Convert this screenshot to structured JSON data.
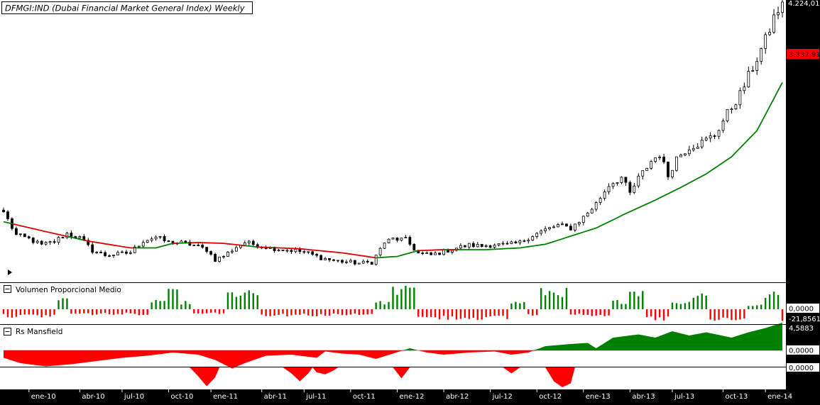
{
  "title": "DFMGI:IND (Dubai Financial Market General Index) Weekly",
  "colors": {
    "background": "#ffffff",
    "axis_panel": "#000000",
    "candle": "#000000",
    "ma_below": "#e00000",
    "ma_above": "#008000",
    "bar_up": "#008000",
    "bar_down": "#ff0000",
    "price_tag": "#ff0000"
  },
  "chart_data": [
    {
      "type": "candlestick",
      "name": "price",
      "title": "DFMGI:IND (Dubai Financial Market General Index) Weekly",
      "period": "Weekly",
      "last_price_label": "4.224,01",
      "ma_value_label": "3.332,91",
      "ylim": [
        1260,
        4224
      ],
      "price_keypoints": [
        {
          "w": 0,
          "p": 1900
        },
        {
          "w": 3,
          "p": 1640
        },
        {
          "w": 6,
          "p": 1600
        },
        {
          "w": 9,
          "p": 1530
        },
        {
          "w": 12,
          "p": 1570
        },
        {
          "w": 15,
          "p": 1660
        },
        {
          "w": 18,
          "p": 1610
        },
        {
          "w": 21,
          "p": 1470
        },
        {
          "w": 24,
          "p": 1420
        },
        {
          "w": 27,
          "p": 1430
        },
        {
          "w": 30,
          "p": 1450
        },
        {
          "w": 33,
          "p": 1580
        },
        {
          "w": 36,
          "p": 1620
        },
        {
          "w": 39,
          "p": 1560
        },
        {
          "w": 42,
          "p": 1555
        },
        {
          "w": 45,
          "p": 1530
        },
        {
          "w": 48,
          "p": 1480
        },
        {
          "w": 50,
          "p": 1370
        },
        {
          "w": 52,
          "p": 1410
        },
        {
          "w": 55,
          "p": 1510
        },
        {
          "w": 57,
          "p": 1560
        },
        {
          "w": 60,
          "p": 1530
        },
        {
          "w": 63,
          "p": 1500
        },
        {
          "w": 66,
          "p": 1480
        },
        {
          "w": 69,
          "p": 1470
        },
        {
          "w": 72,
          "p": 1440
        },
        {
          "w": 75,
          "p": 1390
        },
        {
          "w": 78,
          "p": 1360
        },
        {
          "w": 81,
          "p": 1345
        },
        {
          "w": 84,
          "p": 1330
        },
        {
          "w": 87,
          "p": 1340
        },
        {
          "w": 90,
          "p": 1560
        },
        {
          "w": 92,
          "p": 1600
        },
        {
          "w": 95,
          "p": 1590
        },
        {
          "w": 98,
          "p": 1440
        },
        {
          "w": 101,
          "p": 1420
        },
        {
          "w": 104,
          "p": 1460
        },
        {
          "w": 107,
          "p": 1500
        },
        {
          "w": 110,
          "p": 1530
        },
        {
          "w": 113,
          "p": 1520
        },
        {
          "w": 116,
          "p": 1540
        },
        {
          "w": 119,
          "p": 1530
        },
        {
          "w": 122,
          "p": 1560
        },
        {
          "w": 125,
          "p": 1640
        },
        {
          "w": 128,
          "p": 1700
        },
        {
          "w": 131,
          "p": 1750
        },
        {
          "w": 134,
          "p": 1720
        },
        {
          "w": 137,
          "p": 1840
        },
        {
          "w": 140,
          "p": 1990
        },
        {
          "w": 143,
          "p": 2200
        },
        {
          "w": 146,
          "p": 2280
        },
        {
          "w": 148,
          "p": 2100
        },
        {
          "w": 150,
          "p": 2270
        },
        {
          "w": 153,
          "p": 2460
        },
        {
          "w": 155,
          "p": 2540
        },
        {
          "w": 157,
          "p": 2300
        },
        {
          "w": 159,
          "p": 2500
        },
        {
          "w": 162,
          "p": 2620
        },
        {
          "w": 165,
          "p": 2670
        },
        {
          "w": 168,
          "p": 2750
        },
        {
          "w": 171,
          "p": 2990
        },
        {
          "w": 174,
          "p": 3200
        },
        {
          "w": 177,
          "p": 3500
        },
        {
          "w": 180,
          "p": 3800
        },
        {
          "w": 182,
          "p": 4050
        },
        {
          "w": 184,
          "p": 4224
        }
      ],
      "ma_keypoints": [
        {
          "w": 0,
          "p": 1790
        },
        {
          "w": 10,
          "p": 1680
        },
        {
          "w": 20,
          "p": 1575
        },
        {
          "w": 30,
          "p": 1500
        },
        {
          "w": 36,
          "p": 1500
        },
        {
          "w": 40,
          "p": 1550
        },
        {
          "w": 46,
          "p": 1560
        },
        {
          "w": 52,
          "p": 1550
        },
        {
          "w": 60,
          "p": 1510
        },
        {
          "w": 70,
          "p": 1490
        },
        {
          "w": 80,
          "p": 1445
        },
        {
          "w": 88,
          "p": 1390
        },
        {
          "w": 93,
          "p": 1405
        },
        {
          "w": 98,
          "p": 1470
        },
        {
          "w": 104,
          "p": 1480
        },
        {
          "w": 114,
          "p": 1480
        },
        {
          "w": 122,
          "p": 1500
        },
        {
          "w": 128,
          "p": 1540
        },
        {
          "w": 134,
          "p": 1630
        },
        {
          "w": 140,
          "p": 1720
        },
        {
          "w": 147,
          "p": 1880
        },
        {
          "w": 154,
          "p": 2030
        },
        {
          "w": 160,
          "p": 2170
        },
        {
          "w": 166,
          "p": 2320
        },
        {
          "w": 172,
          "p": 2510
        },
        {
          "w": 178,
          "p": 2800
        },
        {
          "w": 184,
          "p": 3333
        }
      ]
    },
    {
      "type": "bar",
      "name": "volume",
      "title": "Volumen Proporcional Medio",
      "value_label": "0,0000",
      "min_label": "-21,8561",
      "segments": [
        {
          "from": 0,
          "to": 13,
          "sign": -1,
          "amp": 0.35
        },
        {
          "from": 13,
          "to": 16,
          "sign": 1,
          "amp": 0.55
        },
        {
          "from": 16,
          "to": 35,
          "sign": -1,
          "amp": 0.25
        },
        {
          "from": 35,
          "to": 39,
          "sign": 1,
          "amp": 0.45
        },
        {
          "from": 39,
          "to": 42,
          "sign": 1,
          "amp": 0.85
        },
        {
          "from": 42,
          "to": 45,
          "sign": 1,
          "amp": 0.35
        },
        {
          "from": 45,
          "to": 53,
          "sign": -1,
          "amp": 0.2
        },
        {
          "from": 53,
          "to": 61,
          "sign": 1,
          "amp": 0.8
        },
        {
          "from": 61,
          "to": 88,
          "sign": -1,
          "amp": 0.3
        },
        {
          "from": 88,
          "to": 92,
          "sign": 1,
          "amp": 0.35
        },
        {
          "from": 92,
          "to": 98,
          "sign": 1,
          "amp": 1.0
        },
        {
          "from": 98,
          "to": 120,
          "sign": -1,
          "amp": 0.45
        },
        {
          "from": 120,
          "to": 124,
          "sign": 1,
          "amp": 0.35
        },
        {
          "from": 124,
          "to": 127,
          "sign": -1,
          "amp": 0.3
        },
        {
          "from": 127,
          "to": 134,
          "sign": 1,
          "amp": 0.9
        },
        {
          "from": 134,
          "to": 139,
          "sign": -1,
          "amp": 0.25
        },
        {
          "from": 139,
          "to": 144,
          "sign": -1,
          "amp": 0.3
        },
        {
          "from": 144,
          "to": 148,
          "sign": 1,
          "amp": 0.4
        },
        {
          "from": 148,
          "to": 152,
          "sign": 1,
          "amp": 0.95
        },
        {
          "from": 152,
          "to": 158,
          "sign": -1,
          "amp": 0.5
        },
        {
          "from": 158,
          "to": 163,
          "sign": 1,
          "amp": 0.35
        },
        {
          "from": 163,
          "to": 167,
          "sign": 1,
          "amp": 0.85
        },
        {
          "from": 167,
          "to": 176,
          "sign": -1,
          "amp": 0.55
        },
        {
          "from": 176,
          "to": 180,
          "sign": 1,
          "amp": 0.2
        },
        {
          "from": 180,
          "to": 184,
          "sign": 1,
          "amp": 0.75
        },
        {
          "from": 184,
          "to": 185,
          "sign": -1,
          "amp": 0.6
        }
      ]
    },
    {
      "type": "area",
      "name": "rs_mansfield",
      "title": "Rs Mansfield",
      "max_label": "4,5883",
      "value_label": "0,0000",
      "lower_value_label": "0,0000",
      "area_keypoints": [
        {
          "w": 0,
          "v": -0.35
        },
        {
          "w": 4,
          "v": -0.6
        },
        {
          "w": 10,
          "v": -0.75
        },
        {
          "w": 16,
          "v": -0.65
        },
        {
          "w": 22,
          "v": -0.5
        },
        {
          "w": 28,
          "v": -0.35
        },
        {
          "w": 34,
          "v": -0.25
        },
        {
          "w": 40,
          "v": -0.1
        },
        {
          "w": 46,
          "v": -0.2
        },
        {
          "w": 50,
          "v": -0.45
        },
        {
          "w": 54,
          "v": -0.85
        },
        {
          "w": 57,
          "v": -0.6
        },
        {
          "w": 62,
          "v": -0.25
        },
        {
          "w": 68,
          "v": -0.2
        },
        {
          "w": 74,
          "v": -0.35
        },
        {
          "w": 76,
          "v": -0.05
        },
        {
          "w": 80,
          "v": -0.15
        },
        {
          "w": 84,
          "v": -0.2
        },
        {
          "w": 88,
          "v": -0.4
        },
        {
          "w": 92,
          "v": -0.15
        },
        {
          "w": 96,
          "v": 0.1
        },
        {
          "w": 100,
          "v": -0.1
        },
        {
          "w": 104,
          "v": -0.2
        },
        {
          "w": 110,
          "v": -0.1
        },
        {
          "w": 116,
          "v": -0.05
        },
        {
          "w": 120,
          "v": -0.2
        },
        {
          "w": 124,
          "v": -0.1
        },
        {
          "w": 128,
          "v": 0.2
        },
        {
          "w": 134,
          "v": 0.3
        },
        {
          "w": 138,
          "v": 0.35
        },
        {
          "w": 140,
          "v": 0.1
        },
        {
          "w": 144,
          "v": 0.6
        },
        {
          "w": 150,
          "v": 0.75
        },
        {
          "w": 154,
          "v": 0.6
        },
        {
          "w": 158,
          "v": 0.9
        },
        {
          "w": 162,
          "v": 0.7
        },
        {
          "w": 166,
          "v": 0.85
        },
        {
          "w": 172,
          "v": 0.6
        },
        {
          "w": 176,
          "v": 0.85
        },
        {
          "w": 180,
          "v": 1.05
        },
        {
          "w": 184,
          "v": 1.3
        }
      ],
      "lower_keypoints": [
        {
          "w": 0,
          "v": 0
        },
        {
          "w": 44,
          "v": 0
        },
        {
          "w": 46,
          "v": -0.45
        },
        {
          "w": 48,
          "v": -0.95
        },
        {
          "w": 50,
          "v": -0.5
        },
        {
          "w": 51,
          "v": 0
        },
        {
          "w": 66,
          "v": 0
        },
        {
          "w": 68,
          "v": -0.3
        },
        {
          "w": 70,
          "v": -0.7
        },
        {
          "w": 72,
          "v": -0.3
        },
        {
          "w": 73,
          "v": 0
        },
        {
          "w": 74,
          "v": -0.25
        },
        {
          "w": 76,
          "v": -0.35
        },
        {
          "w": 78,
          "v": -0.15
        },
        {
          "w": 79,
          "v": 0
        },
        {
          "w": 92,
          "v": 0
        },
        {
          "w": 94,
          "v": -0.55
        },
        {
          "w": 96,
          "v": 0
        },
        {
          "w": 118,
          "v": 0
        },
        {
          "w": 120,
          "v": -0.3
        },
        {
          "w": 122,
          "v": 0
        },
        {
          "w": 128,
          "v": 0
        },
        {
          "w": 130,
          "v": -0.7
        },
        {
          "w": 132,
          "v": -1.0
        },
        {
          "w": 134,
          "v": -0.8
        },
        {
          "w": 135,
          "v": 0
        },
        {
          "w": 184,
          "v": 0
        }
      ]
    }
  ],
  "x_axis": {
    "ticks": [
      {
        "w": 6,
        "label": "ene-10"
      },
      {
        "w": 18,
        "label": "abr-10"
      },
      {
        "w": 28,
        "label": "jul-10"
      },
      {
        "w": 39,
        "label": "oct-10"
      },
      {
        "w": 49,
        "label": "ene-11"
      },
      {
        "w": 61,
        "label": "abr-11"
      },
      {
        "w": 71,
        "label": "jul-11"
      },
      {
        "w": 82,
        "label": "oct-11"
      },
      {
        "w": 93,
        "label": "ene-12"
      },
      {
        "w": 104,
        "label": "abr-12"
      },
      {
        "w": 115,
        "label": "jul-12"
      },
      {
        "w": 126,
        "label": "oct-12"
      },
      {
        "w": 137,
        "label": "ene-13"
      },
      {
        "w": 148,
        "label": "abr-13"
      },
      {
        "w": 158,
        "label": "jul-13"
      },
      {
        "w": 170,
        "label": "oct-13"
      },
      {
        "w": 180,
        "label": "ene-14"
      }
    ]
  }
}
